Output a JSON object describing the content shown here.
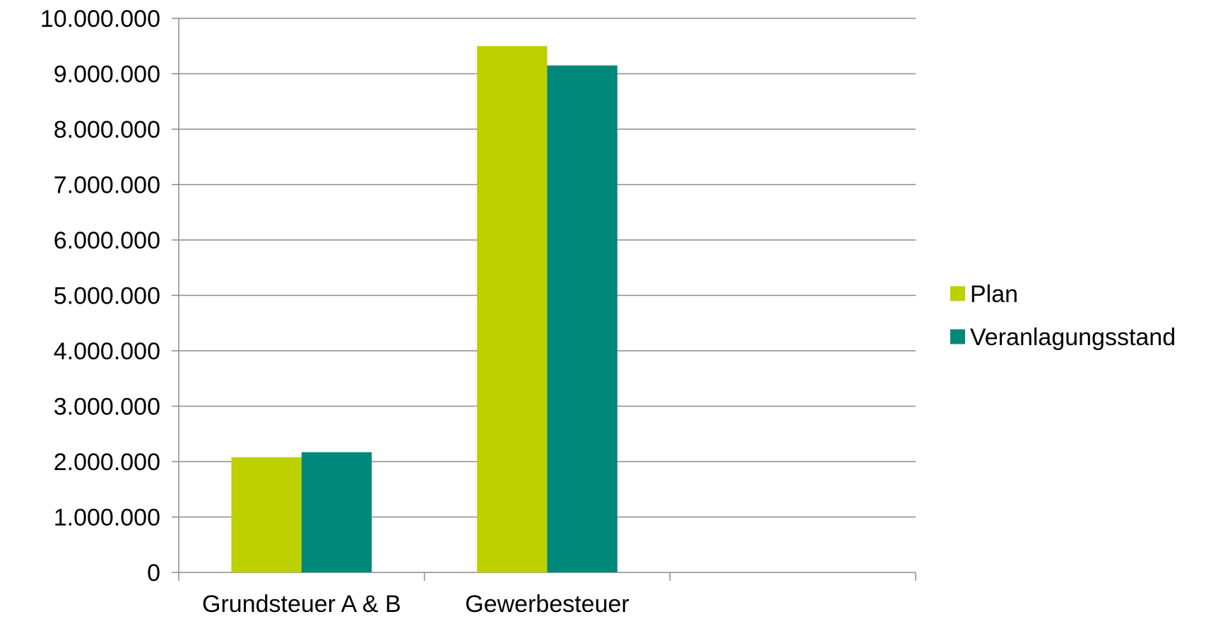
{
  "chart_data": {
    "type": "bar",
    "categories": [
      "Grundsteuer A & B",
      "Gewerbesteuer",
      ""
    ],
    "series": [
      {
        "name": "Plan",
        "color": "#bdd000",
        "values": [
          2080000,
          9500000,
          null
        ]
      },
      {
        "name": "Veranlagungsstand",
        "color": "#00887a",
        "values": [
          2170000,
          9150000,
          null
        ]
      }
    ],
    "ylim": [
      0,
      10000000
    ],
    "yticks": [
      0,
      1000000,
      2000000,
      3000000,
      4000000,
      5000000,
      6000000,
      7000000,
      8000000,
      9000000,
      10000000
    ],
    "ytick_labels": [
      "0",
      "1.000.000",
      "2.000.000",
      "3.000.000",
      "4.000.000",
      "5.000.000",
      "6.000.000",
      "7.000.000",
      "8.000.000",
      "9.000.000",
      "10.000.000"
    ],
    "grid": true,
    "legend_position": "right",
    "title": "",
    "xlabel": "",
    "ylabel": ""
  }
}
